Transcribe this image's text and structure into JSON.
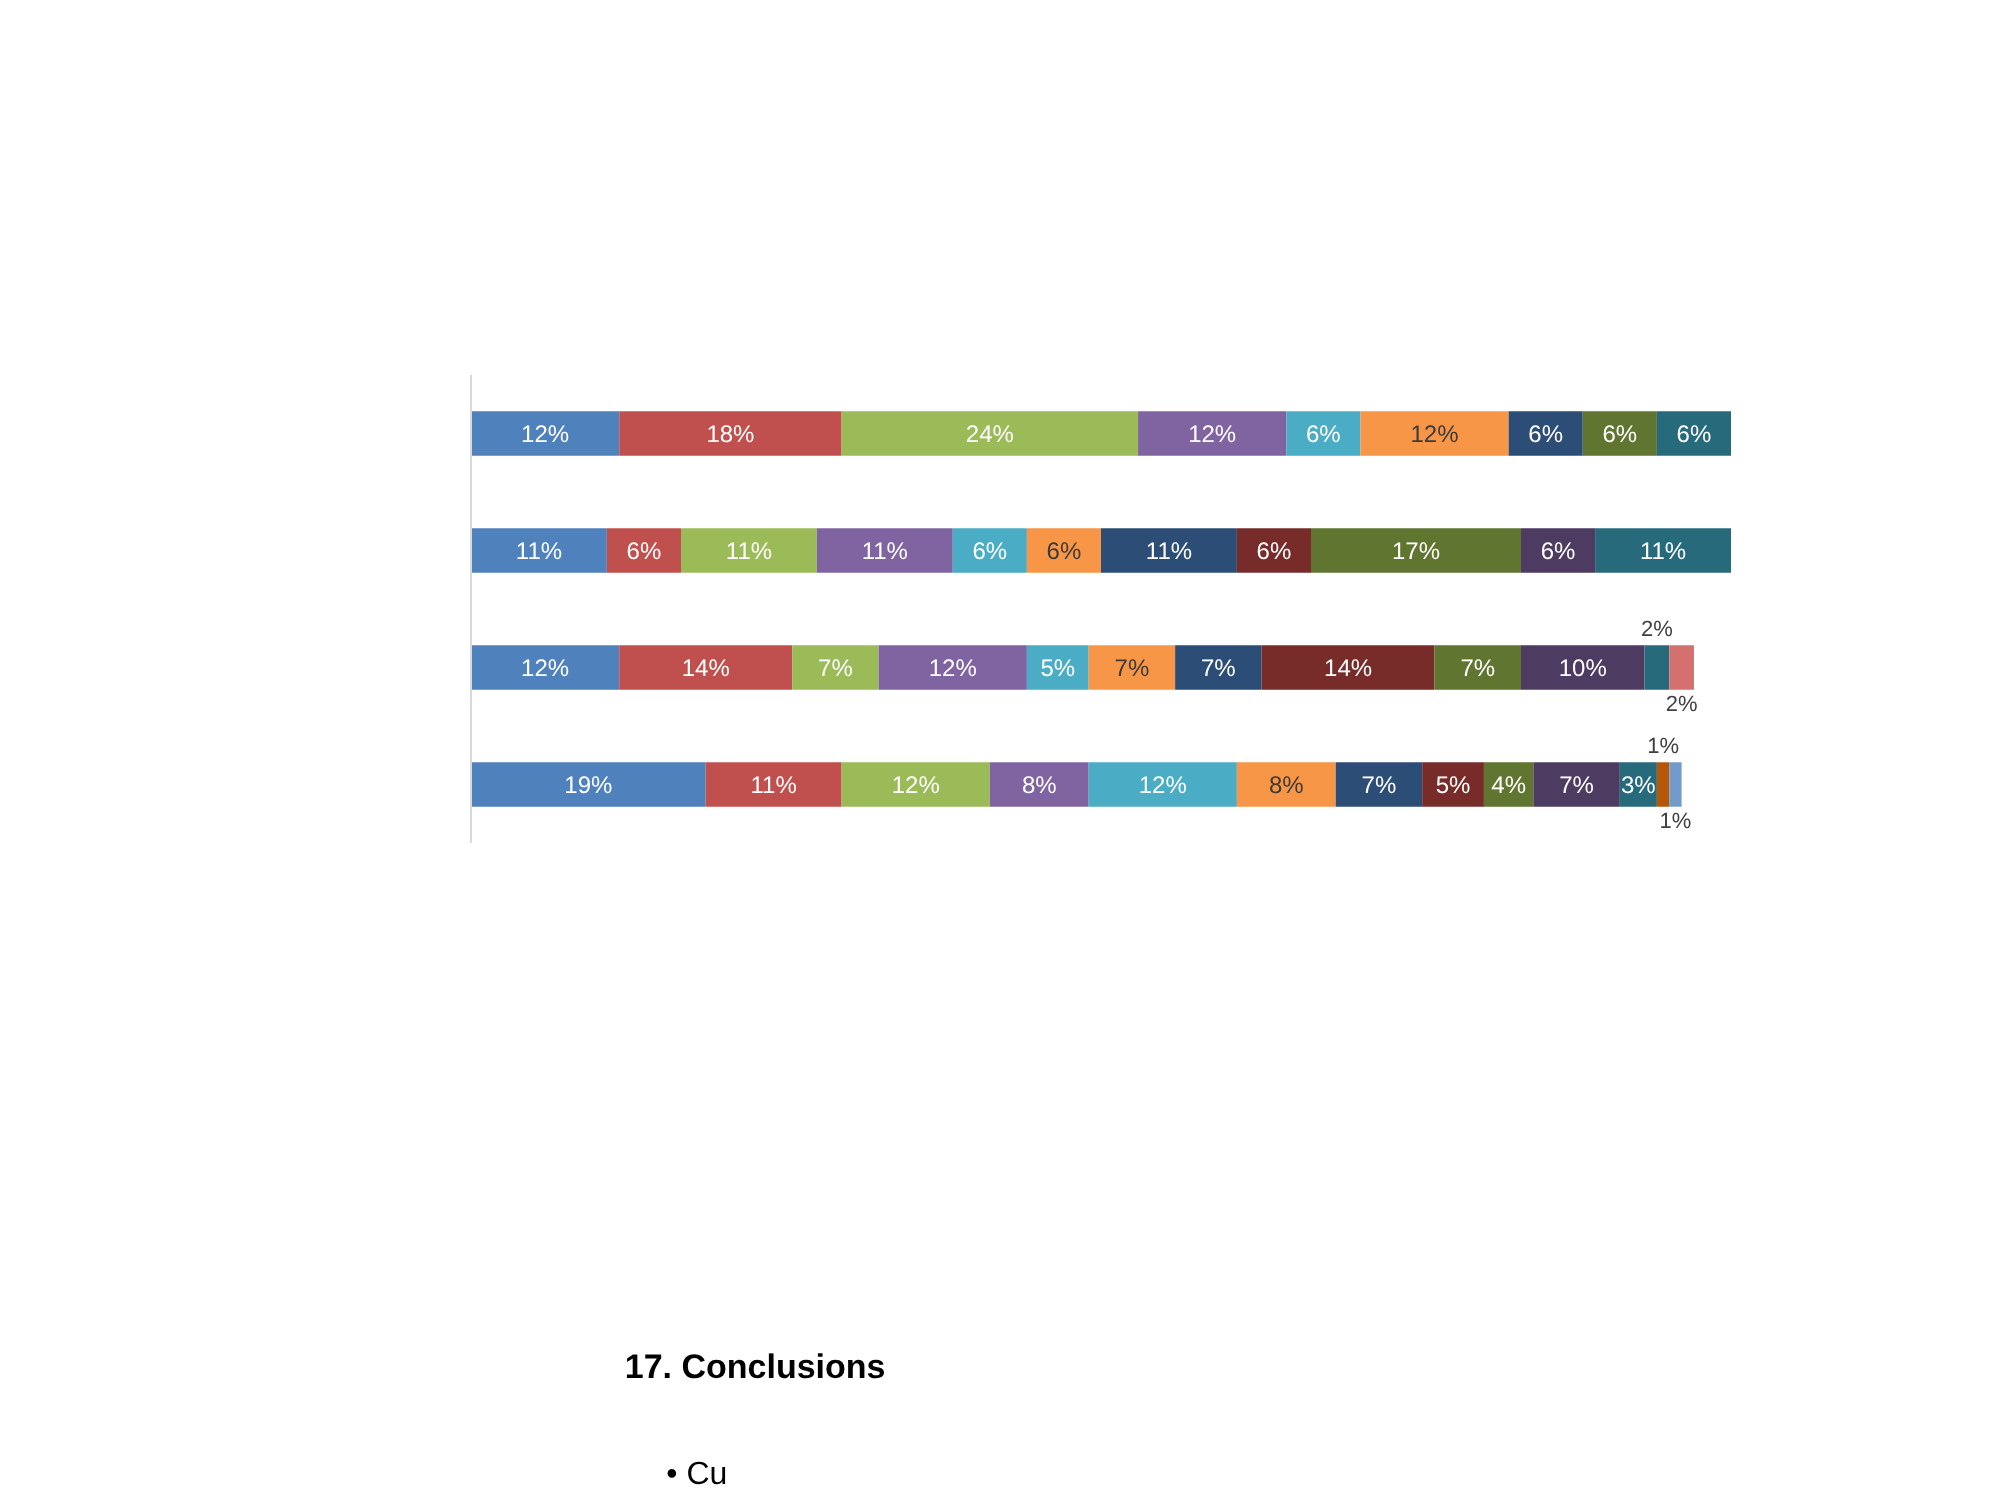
{
  "chart_data": {
    "type": "bar",
    "orientation": "horizontal",
    "stacked": true,
    "categories": [
      null,
      null,
      null,
      null
    ],
    "xlim": [
      0,
      102
    ],
    "series": [
      {
        "color": "#4f81bd",
        "values": [
          12,
          11,
          12,
          19
        ],
        "value_labels": [
          "12%",
          "11%",
          "12%",
          "19%"
        ]
      },
      {
        "color": "#c0504d",
        "values": [
          18,
          6,
          14,
          11
        ],
        "value_labels": [
          "18%",
          "6%",
          "14%",
          "11%"
        ]
      },
      {
        "color": "#9bbb59",
        "values": [
          24,
          11,
          7,
          12
        ],
        "value_labels": [
          "24%",
          "11%",
          "7%",
          "12%"
        ]
      },
      {
        "color": "#8064a2",
        "values": [
          12,
          11,
          12,
          8
        ],
        "value_labels": [
          "12%",
          "11%",
          "12%",
          "8%"
        ]
      },
      {
        "color": "#4bacc6",
        "values": [
          6,
          6,
          5,
          12
        ],
        "value_labels": [
          "6%",
          "6%",
          "5%",
          "12%"
        ]
      },
      {
        "color": "#f79646",
        "values": [
          12,
          6,
          7,
          8
        ],
        "value_labels": [
          "12%",
          "6%",
          "7%",
          "8%"
        ]
      },
      {
        "color": "#2c4d75",
        "values": [
          6,
          11,
          7,
          7
        ],
        "value_labels": [
          "6%",
          "11%",
          "7%",
          "7%"
        ]
      },
      {
        "color": "#772c2a",
        "values": [
          null,
          6,
          14,
          5
        ],
        "value_labels": [
          null,
          "6%",
          "14%",
          "5%"
        ]
      },
      {
        "color": "#5f7530",
        "values": [
          6,
          17,
          7,
          4
        ],
        "value_labels": [
          "6%",
          "17%",
          "7%",
          "4%"
        ]
      },
      {
        "color": "#4d3b62",
        "values": [
          null,
          6,
          10,
          7
        ],
        "value_labels": [
          null,
          "6%",
          "10%",
          "7%"
        ]
      },
      {
        "color": "#276a7c",
        "values": [
          6,
          11,
          2,
          3
        ],
        "value_labels": [
          "6%",
          "11%",
          "2%",
          "3%"
        ]
      },
      {
        "color": "#b65708",
        "values": [
          null,
          null,
          null,
          1
        ],
        "value_labels": [
          null,
          null,
          null,
          "1%"
        ]
      },
      {
        "color": "#729aca",
        "values": [
          null,
          null,
          null,
          1
        ],
        "value_labels": [
          null,
          null,
          null,
          "1%"
        ]
      },
      {
        "color": "#d4706d",
        "values": [
          null,
          null,
          2,
          null
        ],
        "value_labels": [
          null,
          null,
          "2%",
          null
        ]
      }
    ],
    "annotations": [
      "17. Conclusions",
      "• Cu"
    ]
  }
}
